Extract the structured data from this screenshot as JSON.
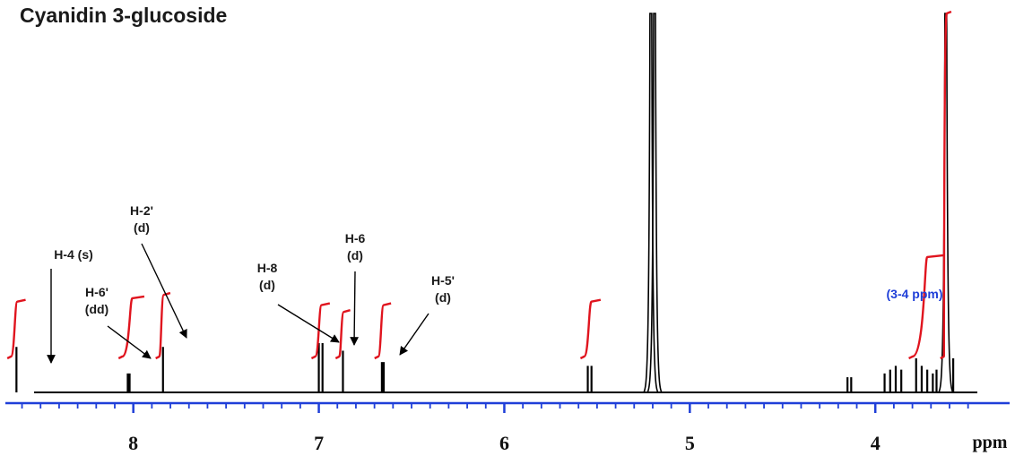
{
  "chart_data": {
    "type": "line",
    "title": "Cyanidin 3-glucoside",
    "xlabel": "ppm",
    "x_reversed": true,
    "xlim": [
      8.68,
      3.45
    ],
    "ylim": [
      0,
      100
    ],
    "x_ticks": [
      8,
      7,
      6,
      5,
      4
    ],
    "colors": {
      "spectrum": "#000000",
      "axis": "#1f3fd8",
      "integral": "#e0141e",
      "note": "#1f3fd8"
    },
    "peaks": [
      {
        "ppm": 8.63,
        "height": 12
      },
      {
        "ppm": 8.03,
        "height": 5
      },
      {
        "ppm": 8.02,
        "height": 5
      },
      {
        "ppm": 7.84,
        "height": 12
      },
      {
        "ppm": 7.0,
        "height": 13
      },
      {
        "ppm": 6.98,
        "height": 13
      },
      {
        "ppm": 6.87,
        "height": 11
      },
      {
        "ppm": 6.66,
        "height": 8
      },
      {
        "ppm": 6.65,
        "height": 8
      },
      {
        "ppm": 5.55,
        "height": 7
      },
      {
        "ppm": 5.53,
        "height": 7
      },
      {
        "ppm": 5.21,
        "height": 100
      },
      {
        "ppm": 5.19,
        "height": 100
      },
      {
        "ppm": 4.15,
        "height": 4
      },
      {
        "ppm": 4.13,
        "height": 4
      },
      {
        "ppm": 3.95,
        "height": 5
      },
      {
        "ppm": 3.92,
        "height": 6
      },
      {
        "ppm": 3.89,
        "height": 7
      },
      {
        "ppm": 3.86,
        "height": 6
      },
      {
        "ppm": 3.78,
        "height": 9
      },
      {
        "ppm": 3.75,
        "height": 7
      },
      {
        "ppm": 3.72,
        "height": 6
      },
      {
        "ppm": 3.69,
        "height": 5
      },
      {
        "ppm": 3.67,
        "height": 6
      },
      {
        "ppm": 3.62,
        "height": 100
      },
      {
        "ppm": 3.58,
        "height": 9
      }
    ],
    "integrals": [
      {
        "start": 8.66,
        "end": 8.6,
        "rise": 16
      },
      {
        "start": 8.06,
        "end": 7.96,
        "rise": 17
      },
      {
        "start": 7.86,
        "end": 7.82,
        "rise": 18
      },
      {
        "start": 7.02,
        "end": 6.96,
        "rise": 15
      },
      {
        "start": 6.89,
        "end": 6.85,
        "rise": 13
      },
      {
        "start": 6.68,
        "end": 6.63,
        "rise": 15
      },
      {
        "start": 5.57,
        "end": 5.5,
        "rise": 16
      },
      {
        "start": 3.8,
        "end": 3.65,
        "rise": 29
      },
      {
        "start": 3.63,
        "end": 3.61,
        "rise": 100
      }
    ],
    "annotations": [
      {
        "lines": [
          "H-4 (s)"
        ],
        "ppm": 8.63
      },
      {
        "lines": [
          "H-6'",
          "(dd)"
        ],
        "ppm": 8.03
      },
      {
        "lines": [
          "H-2'",
          "(d)"
        ],
        "ppm": 7.84
      },
      {
        "lines": [
          "H-8",
          "(d)"
        ],
        "ppm": 6.99
      },
      {
        "lines": [
          "H-6",
          "(d)"
        ],
        "ppm": 6.87
      },
      {
        "lines": [
          "H-5'",
          "(d)"
        ],
        "ppm": 6.65
      }
    ],
    "note": "(3-4 ppm)"
  }
}
